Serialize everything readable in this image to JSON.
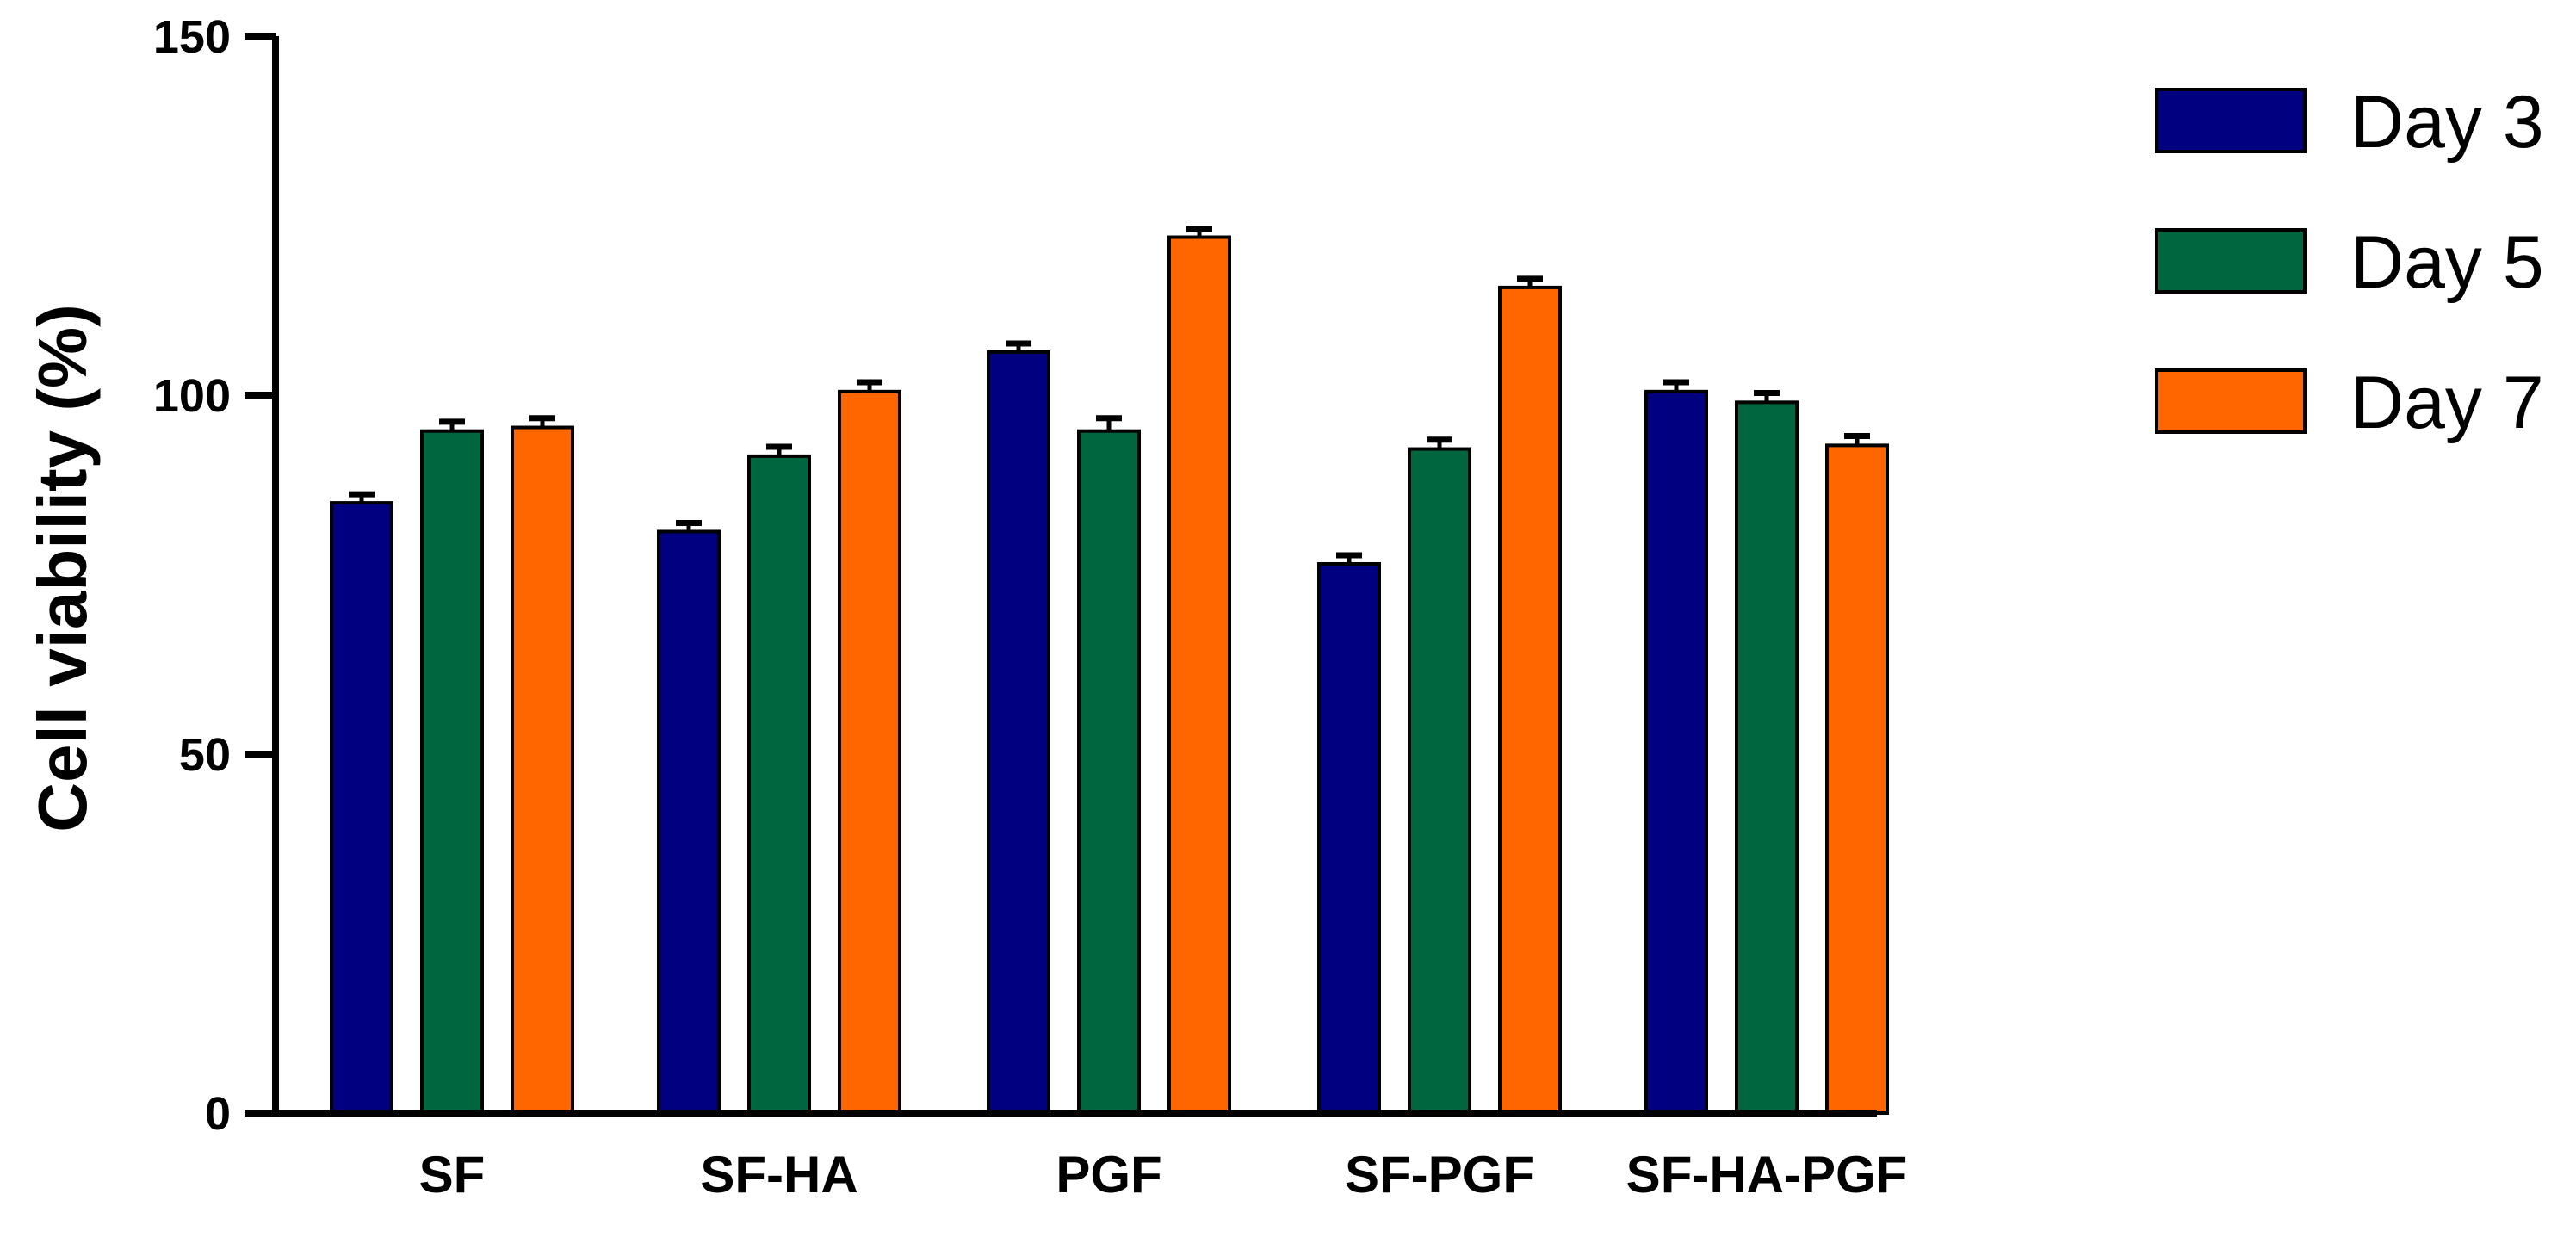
{
  "chart_data": {
    "type": "bar",
    "title": "",
    "xlabel": "",
    "ylabel": "Cell viability (%)",
    "ylim": [
      0,
      150
    ],
    "yticks": [
      0,
      50,
      100,
      150
    ],
    "grid": false,
    "legend_position": "top-right",
    "categories": [
      "SF",
      "SF-HA",
      "PGF",
      "SF-PGF",
      "SF-HA-PGF"
    ],
    "series": [
      {
        "name": "Day 3",
        "color": "#000080",
        "values": [
          85,
          81,
          106,
          76.5,
          100.5
        ],
        "errors": [
          1.2,
          1.2,
          1.2,
          1.2,
          1.3
        ]
      },
      {
        "name": "Day 5",
        "color": "#006640",
        "values": [
          95,
          91.5,
          95,
          92.5,
          99
        ],
        "errors": [
          1.3,
          1.3,
          1.8,
          1.3,
          1.3
        ]
      },
      {
        "name": "Day 7",
        "color": "#FF6600",
        "values": [
          95.5,
          100.5,
          122,
          115,
          93
        ],
        "errors": [
          1.3,
          1.3,
          1.1,
          1.2,
          1.3
        ]
      }
    ]
  }
}
